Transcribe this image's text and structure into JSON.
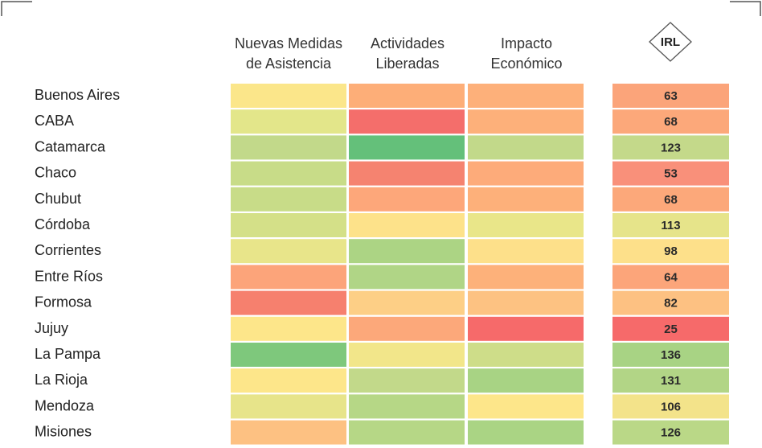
{
  "chart_data": {
    "type": "heatmap",
    "columns": [
      "Nuevas Medidas de Asistencia",
      "Actividades Liberadas",
      "Impacto Económico"
    ],
    "column_header_lines": [
      [
        "Nuevas Medidas",
        "de Asistencia"
      ],
      [
        "Actividades",
        "Liberadas"
      ],
      [
        "Impacto",
        "Económico"
      ]
    ],
    "score_column_label": "IRL",
    "rows": [
      "Buenos Aires",
      "CABA",
      "Catamarca",
      "Chaco",
      "Chubut",
      "Córdoba",
      "Corrientes",
      "Entre Ríos",
      "Formosa",
      "Jujuy",
      "La Pampa",
      "La Rioja",
      "Mendoza",
      "Misiones"
    ],
    "cell_colors": [
      [
        "#fbe68a",
        "#fdae78",
        "#fdb07a"
      ],
      [
        "#e3e68a",
        "#f46e6b",
        "#fdb07a"
      ],
      [
        "#c2d98a",
        "#64c07a",
        "#c2d98a"
      ],
      [
        "#c8dc88",
        "#f58370",
        "#fdab7a"
      ],
      [
        "#c8dc88",
        "#fda77a",
        "#fdb07a"
      ],
      [
        "#d4e088",
        "#fde28a",
        "#e9e689"
      ],
      [
        "#e8e58a",
        "#acd484",
        "#fde08a"
      ],
      [
        "#fca47a",
        "#b0d586",
        "#fdb17a"
      ],
      [
        "#f6806e",
        "#fdcf86",
        "#fdc282"
      ],
      [
        "#fde68a",
        "#fca87a",
        "#f66a6a"
      ],
      [
        "#7ec87c",
        "#f2e68a",
        "#cedd89"
      ],
      [
        "#fde68a",
        "#c2d98a",
        "#a8d384"
      ],
      [
        "#e7e48a",
        "#b6d786",
        "#fde68a"
      ],
      [
        "#fdc182",
        "#b6d786",
        "#aad484"
      ]
    ],
    "irl_values": [
      63,
      68,
      123,
      53,
      68,
      113,
      98,
      64,
      82,
      25,
      136,
      131,
      106,
      126
    ],
    "irl_colors": [
      "#fba47a",
      "#fca87a",
      "#c4d98a",
      "#f9907a",
      "#fca87a",
      "#e6e48a",
      "#fde08a",
      "#fca57a",
      "#fdc182",
      "#f66a6a",
      "#a8d384",
      "#b2d586",
      "#f3e38a",
      "#bad887"
    ],
    "legend": "none",
    "grid": false
  }
}
